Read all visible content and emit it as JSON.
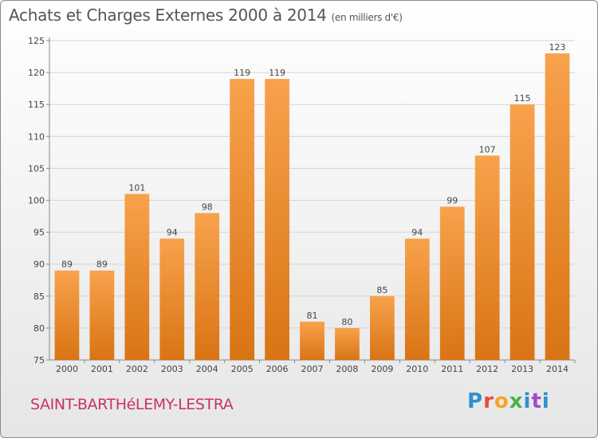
{
  "header": {
    "title": "Achats et Charges Externes 2000 à 2014",
    "unit": "(en milliers d'€)"
  },
  "footer": {
    "commune": "SAINT-BARTHéLEMY-LESTRA",
    "logo": [
      "P",
      "r",
      "o",
      "x",
      "i",
      "t",
      "i"
    ]
  },
  "colors": {
    "bar_light": "#f8a24c",
    "bar_dark": "#d97414",
    "commune": "#c8326a",
    "logo": [
      "#2f8fd0",
      "#e94b3c",
      "#f5a623",
      "#4caf50",
      "#2f8fd0",
      "#9c4fc1",
      "#2f8fd0"
    ]
  },
  "chart_data": {
    "type": "bar",
    "title": "Achats et Charges Externes 2000 à 2014",
    "subtitle": "(en milliers d'€)",
    "categories": [
      "2000",
      "2001",
      "2002",
      "2003",
      "2004",
      "2005",
      "2006",
      "2007",
      "2008",
      "2009",
      "2010",
      "2011",
      "2012",
      "2013",
      "2014"
    ],
    "values": [
      89,
      89,
      101,
      94,
      98,
      119,
      119,
      81,
      80,
      85,
      94,
      99,
      107,
      115,
      123
    ],
    "ylim": [
      75,
      125
    ],
    "yticks": [
      75,
      80,
      85,
      90,
      95,
      100,
      105,
      110,
      115,
      120,
      125
    ],
    "grid": true,
    "legend": "none"
  }
}
